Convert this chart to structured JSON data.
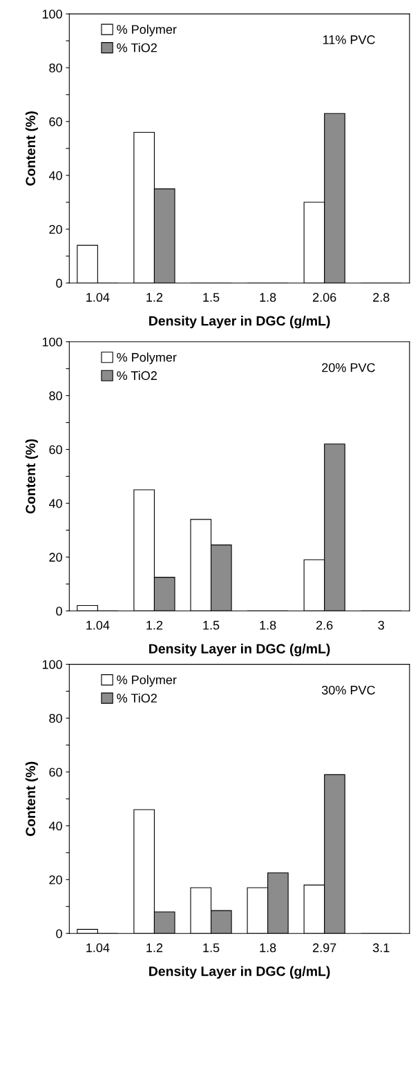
{
  "chart_data": [
    {
      "type": "bar",
      "xlabel": "Density Layer in DGC (g/mL)",
      "ylabel": "Content (%)",
      "annotations": [
        "11% PVC"
      ],
      "categories": [
        "1.04",
        "1.2",
        "1.5",
        "1.8",
        "2.06",
        "2.8"
      ],
      "series": [
        {
          "name": "% Polymer",
          "color": "#ffffff",
          "values": [
            14,
            56,
            0,
            0,
            30,
            0
          ]
        },
        {
          "name": "% TiO2",
          "color": "#8c8c8c",
          "values": [
            0,
            35,
            0,
            0,
            63,
            0
          ]
        }
      ],
      "ylim": [
        0,
        100
      ],
      "yticks": [
        0,
        {
          "value": 10,
          "label": null
        },
        20,
        {
          "value": 30,
          "label": null
        },
        40,
        {
          "value": 50,
          "label": null
        },
        60,
        {
          "value": 70,
          "label": null
        },
        80,
        {
          "value": 90,
          "label": null
        },
        100
      ],
      "legend": "top left",
      "grid": false
    },
    {
      "type": "bar",
      "xlabel": "Density Layer in DGC (g/mL)",
      "ylabel": "Content (%)",
      "annotations": [
        "20% PVC"
      ],
      "categories": [
        "1.04",
        "1.2",
        "1.5",
        "1.8",
        "2.6",
        "3"
      ],
      "series": [
        {
          "name": "% Polymer",
          "color": "#ffffff",
          "values": [
            2,
            45,
            34,
            0,
            19,
            0
          ]
        },
        {
          "name": "% TiO2",
          "color": "#8c8c8c",
          "values": [
            0,
            12.5,
            24.5,
            0,
            62,
            0
          ]
        }
      ],
      "ylim": [
        0,
        100
      ],
      "yticks": [
        0,
        {
          "value": 10,
          "label": null
        },
        20,
        {
          "value": 30,
          "label": null
        },
        40,
        {
          "value": 50,
          "label": null
        },
        60,
        {
          "value": 70,
          "label": null
        },
        80,
        {
          "value": 90,
          "label": null
        },
        100
      ],
      "legend": "top left",
      "grid": false
    },
    {
      "type": "bar",
      "xlabel": "Density Layer in DGC (g/mL)",
      "ylabel": "Content (%)",
      "annotations": [
        "30% PVC"
      ],
      "categories": [
        "1.04",
        "1.2",
        "1.5",
        "1.8",
        "2.97",
        "3.1"
      ],
      "series": [
        {
          "name": "% Polymer",
          "color": "#ffffff",
          "values": [
            1.5,
            46,
            17,
            17,
            18,
            0
          ]
        },
        {
          "name": "% TiO2",
          "color": "#8c8c8c",
          "values": [
            0,
            8,
            8.5,
            22.5,
            59,
            0
          ]
        }
      ],
      "ylim": [
        0,
        100
      ],
      "yticks": [
        0,
        {
          "value": 10,
          "label": null
        },
        20,
        {
          "value": 30,
          "label": null
        },
        40,
        {
          "value": 50,
          "label": null
        },
        60,
        {
          "value": 70,
          "label": null
        },
        80,
        {
          "value": 90,
          "label": null
        },
        100
      ],
      "legend": "top left",
      "grid": false
    }
  ]
}
